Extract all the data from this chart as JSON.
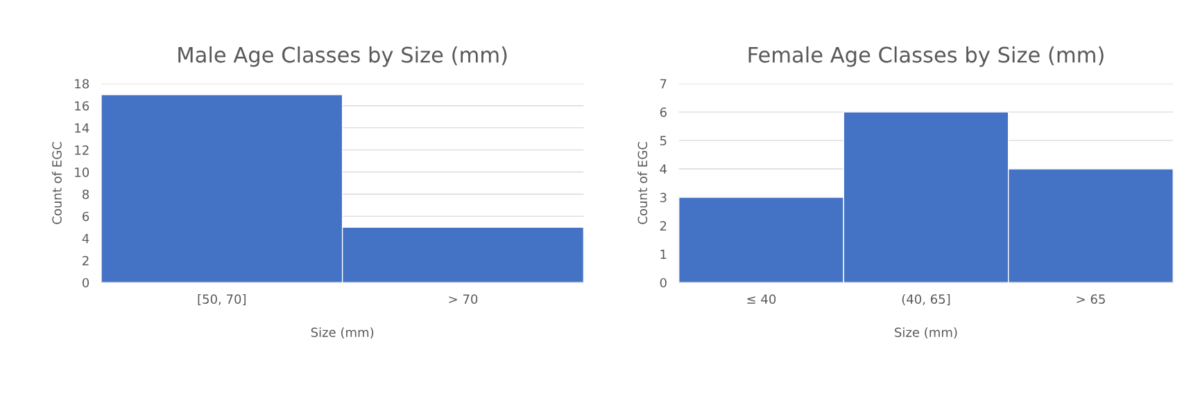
{
  "chart_data": [
    {
      "type": "bar",
      "title": "Male Age Classes by Size (mm)",
      "xlabel": "Size (mm)",
      "ylabel": "Count of EGC",
      "categories": [
        "[50, 70]",
        "> 70"
      ],
      "values": [
        17,
        5
      ],
      "color": "#4472c4",
      "ylim": [
        0,
        18
      ],
      "yticks": [
        0,
        2,
        4,
        6,
        8,
        10,
        12,
        14,
        16,
        18
      ],
      "grid": "y"
    },
    {
      "type": "bar",
      "title": "Female Age Classes by Size (mm)",
      "xlabel": "Size (mm)",
      "ylabel": "Count of EGC",
      "categories": [
        "≤ 40",
        "(40, 65]",
        "> 65"
      ],
      "values": [
        3,
        6,
        4
      ],
      "color": "#4472c4",
      "ylim": [
        0,
        7
      ],
      "yticks": [
        0,
        1,
        2,
        3,
        4,
        5,
        6,
        7
      ],
      "grid": "y"
    }
  ]
}
